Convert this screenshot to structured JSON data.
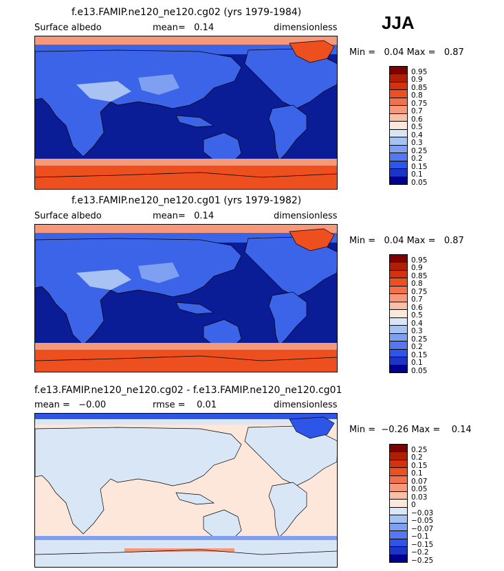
{
  "season": "JJA",
  "panels": [
    {
      "title": "f.e13.FAMIP.ne120_ne120.cg02 (yrs 1979-1984)",
      "left_label": "Surface albedo",
      "mid_label": "mean=   0.14",
      "right_label": "dimensionless",
      "minmax": "Min =   0.04 Max =   0.87",
      "levels": [
        "0.95",
        "0.9",
        "0.85",
        "0.8",
        "0.75",
        "0.7",
        "0.6",
        "0.5",
        "0.4",
        "0.3",
        "0.25",
        "0.2",
        "0.15",
        "0.1",
        "0.05"
      ]
    },
    {
      "title": "f.e13.FAMIP.ne120_ne120.cg01 (yrs 1979-1982)",
      "left_label": "Surface albedo",
      "mid_label": "mean=   0.14",
      "right_label": "dimensionless",
      "minmax": "Min =   0.04 Max =   0.87",
      "levels": [
        "0.95",
        "0.9",
        "0.85",
        "0.8",
        "0.75",
        "0.7",
        "0.6",
        "0.5",
        "0.4",
        "0.3",
        "0.25",
        "0.2",
        "0.15",
        "0.1",
        "0.05"
      ]
    },
    {
      "title": "f.e13.FAMIP.ne120_ne120.cg02 - f.e13.FAMIP.ne120_ne120.cg01",
      "left_label": "mean =   −0.00",
      "mid_label": "rmse =    0.01",
      "right_label": "dimensionless",
      "minmax": "Min =  −0.26 Max =    0.14",
      "levels": [
        "0.25",
        "0.2",
        "0.15",
        "0.1",
        "0.07",
        "0.05",
        "0.03",
        "0",
        "−0.03",
        "−0.05",
        "−0.07",
        "−0.1",
        "−0.15",
        "−0.2",
        "−0.25"
      ]
    }
  ],
  "colors": {
    "palette": [
      "#7f0000",
      "#b01e05",
      "#d7300c",
      "#ee4f1e",
      "#f3704a",
      "#f6997a",
      "#fac0a6",
      "#fde6da",
      "#d9e6f6",
      "#a6c3f0",
      "#7f9ff0",
      "#5577f2",
      "#2d55e8",
      "#1a35c8",
      "#000090"
    ],
    "ocean": "#0a1c96",
    "land": "#3b64e8",
    "land_bright": "#a8c2f4",
    "ice_red": "#ee4f1e",
    "ice_pink": "#f6997a",
    "diff_ocean": "#fde6da",
    "diff_land": "#d9e6f6"
  },
  "chart_data": [
    {
      "type": "heatmap",
      "title": "f.e13.FAMIP.ne120_ne120.cg02 (yrs 1979-1984)",
      "variable": "Surface albedo",
      "units": "dimensionless",
      "mean": 0.14,
      "min": 0.04,
      "max": 0.87,
      "contour_levels": [
        0.05,
        0.1,
        0.15,
        0.2,
        0.25,
        0.3,
        0.4,
        0.5,
        0.6,
        0.7,
        0.75,
        0.8,
        0.85,
        0.9,
        0.95
      ]
    },
    {
      "type": "heatmap",
      "title": "f.e13.FAMIP.ne120_ne120.cg01 (yrs 1979-1982)",
      "variable": "Surface albedo",
      "units": "dimensionless",
      "mean": 0.14,
      "min": 0.04,
      "max": 0.87,
      "contour_levels": [
        0.05,
        0.1,
        0.15,
        0.2,
        0.25,
        0.3,
        0.4,
        0.5,
        0.6,
        0.7,
        0.75,
        0.8,
        0.85,
        0.9,
        0.95
      ]
    },
    {
      "type": "heatmap",
      "title": "f.e13.FAMIP.ne120_ne120.cg02 - f.e13.FAMIP.ne120_ne120.cg01",
      "units": "dimensionless",
      "mean": -0.0,
      "rmse": 0.01,
      "min": -0.26,
      "max": 0.14,
      "contour_levels": [
        -0.25,
        -0.2,
        -0.15,
        -0.1,
        -0.07,
        -0.05,
        -0.03,
        0,
        0.03,
        0.05,
        0.07,
        0.1,
        0.15,
        0.2,
        0.25
      ]
    }
  ]
}
